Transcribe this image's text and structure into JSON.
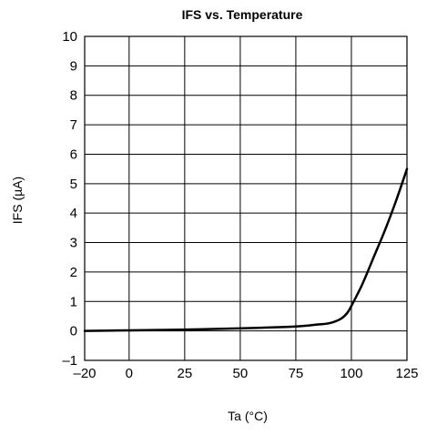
{
  "chart_data": {
    "type": "line",
    "title": "IFS vs. Temperature",
    "xlabel": "Ta (°C)",
    "ylabel": "IFS (µA)",
    "xlim": [
      -20,
      125
    ],
    "ylim": [
      -1,
      10
    ],
    "x_ticks": [
      -20,
      0,
      25,
      50,
      75,
      100,
      125
    ],
    "x_tick_labels": [
      "–20",
      "0",
      "25",
      "50",
      "75",
      "100",
      "125"
    ],
    "y_ticks": [
      -1,
      0,
      1,
      2,
      3,
      4,
      5,
      6,
      7,
      8,
      9,
      10
    ],
    "y_tick_labels": [
      "–1",
      "0",
      "1",
      "2",
      "3",
      "4",
      "5",
      "6",
      "7",
      "8",
      "9",
      "10"
    ],
    "grid": true,
    "line_color": "#000000",
    "series": [
      {
        "x": [
          -20,
          0,
          20,
          40,
          60,
          75,
          85,
          90,
          95,
          98,
          100,
          105,
          110,
          115,
          120,
          125
        ],
        "y": [
          0.0,
          0.02,
          0.04,
          0.07,
          0.11,
          0.15,
          0.22,
          0.26,
          0.4,
          0.6,
          0.85,
          1.6,
          2.5,
          3.4,
          4.4,
          5.5
        ]
      }
    ]
  }
}
